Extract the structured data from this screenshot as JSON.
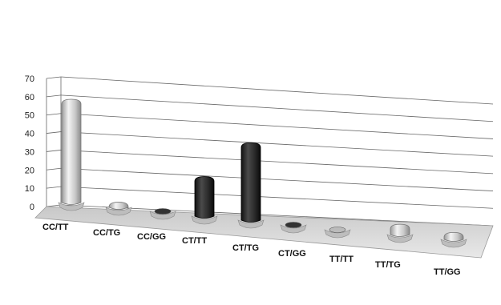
{
  "chart_data": {
    "type": "bar",
    "categories": [
      "CC/TT",
      "CC/TG",
      "CC/GG",
      "CT/TT",
      "CT/TG",
      "CT/GG",
      "TT/TT",
      "TT/TG",
      "TT/GG"
    ],
    "values": [
      60,
      3,
      0,
      23,
      45,
      0,
      0,
      6,
      4
    ],
    "y_ticks": [
      "0",
      "10",
      "20",
      "30",
      "40",
      "50",
      "60",
      "70"
    ],
    "ylim": [
      0,
      70
    ],
    "grid": true,
    "colors": {
      "light_bar": "#d0d0d0",
      "dark_bar": "#2a2a2a",
      "floor": "#d6d6d6",
      "grid": "#666666"
    },
    "bar_styles": [
      "light",
      "light",
      "dark",
      "dark",
      "dark",
      "dark",
      "light",
      "light",
      "light"
    ]
  }
}
